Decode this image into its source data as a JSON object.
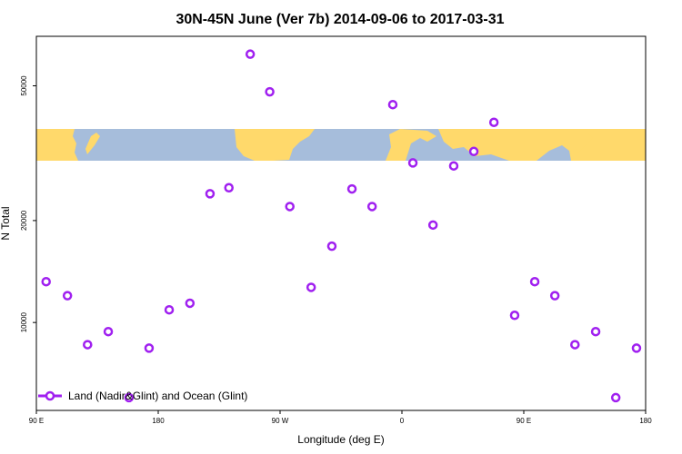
{
  "chart_data": {
    "type": "scatter",
    "title": "30N-45N June (Ver 7b)   2014-09-06 to 2017-03-31",
    "xlabel": "Longitude (deg E)",
    "ylabel": "N Total",
    "x_tick_labels": [
      "90 E",
      "180",
      "90 W",
      "0",
      "90 E",
      "180"
    ],
    "y_ticks": [
      10000,
      20000,
      50000
    ],
    "y_tick_labels": [
      "10000",
      "20000",
      "50000"
    ],
    "y_scale": "log",
    "ylim": [
      5500,
      70000
    ],
    "legend": {
      "position": "bottom-left",
      "label": "Land (Nadir&Glint) and Ocean (Glint)"
    },
    "marker_color": "#a020f0",
    "map_band_colors": {
      "ocean": "#a6bddb",
      "land": "#ffd96b"
    },
    "series": [
      {
        "name": "Land (Nadir&Glint) and Ocean (Glint)",
        "points": [
          {
            "x": 0.016,
            "y": 13200
          },
          {
            "x": 0.051,
            "y": 12000
          },
          {
            "x": 0.084,
            "y": 8600
          },
          {
            "x": 0.118,
            "y": 9400
          },
          {
            "x": 0.152,
            "y": 6000
          },
          {
            "x": 0.185,
            "y": 8400
          },
          {
            "x": 0.218,
            "y": 10900
          },
          {
            "x": 0.252,
            "y": 11400
          },
          {
            "x": 0.285,
            "y": 24000
          },
          {
            "x": 0.316,
            "y": 25000
          },
          {
            "x": 0.351,
            "y": 62000
          },
          {
            "x": 0.383,
            "y": 48000
          },
          {
            "x": 0.416,
            "y": 22000
          },
          {
            "x": 0.451,
            "y": 12700
          },
          {
            "x": 0.485,
            "y": 16800
          },
          {
            "x": 0.518,
            "y": 24800
          },
          {
            "x": 0.551,
            "y": 22000
          },
          {
            "x": 0.585,
            "y": 44000
          },
          {
            "x": 0.618,
            "y": 29600
          },
          {
            "x": 0.651,
            "y": 19400
          },
          {
            "x": 0.685,
            "y": 29000
          },
          {
            "x": 0.718,
            "y": 32000
          },
          {
            "x": 0.751,
            "y": 39000
          },
          {
            "x": 0.785,
            "y": 10500
          },
          {
            "x": 0.818,
            "y": 13200
          },
          {
            "x": 0.851,
            "y": 12000
          },
          {
            "x": 0.884,
            "y": 8600
          },
          {
            "x": 0.918,
            "y": 9400
          },
          {
            "x": 0.951,
            "y": 6000
          },
          {
            "x": 0.985,
            "y": 8400
          }
        ]
      }
    ]
  }
}
